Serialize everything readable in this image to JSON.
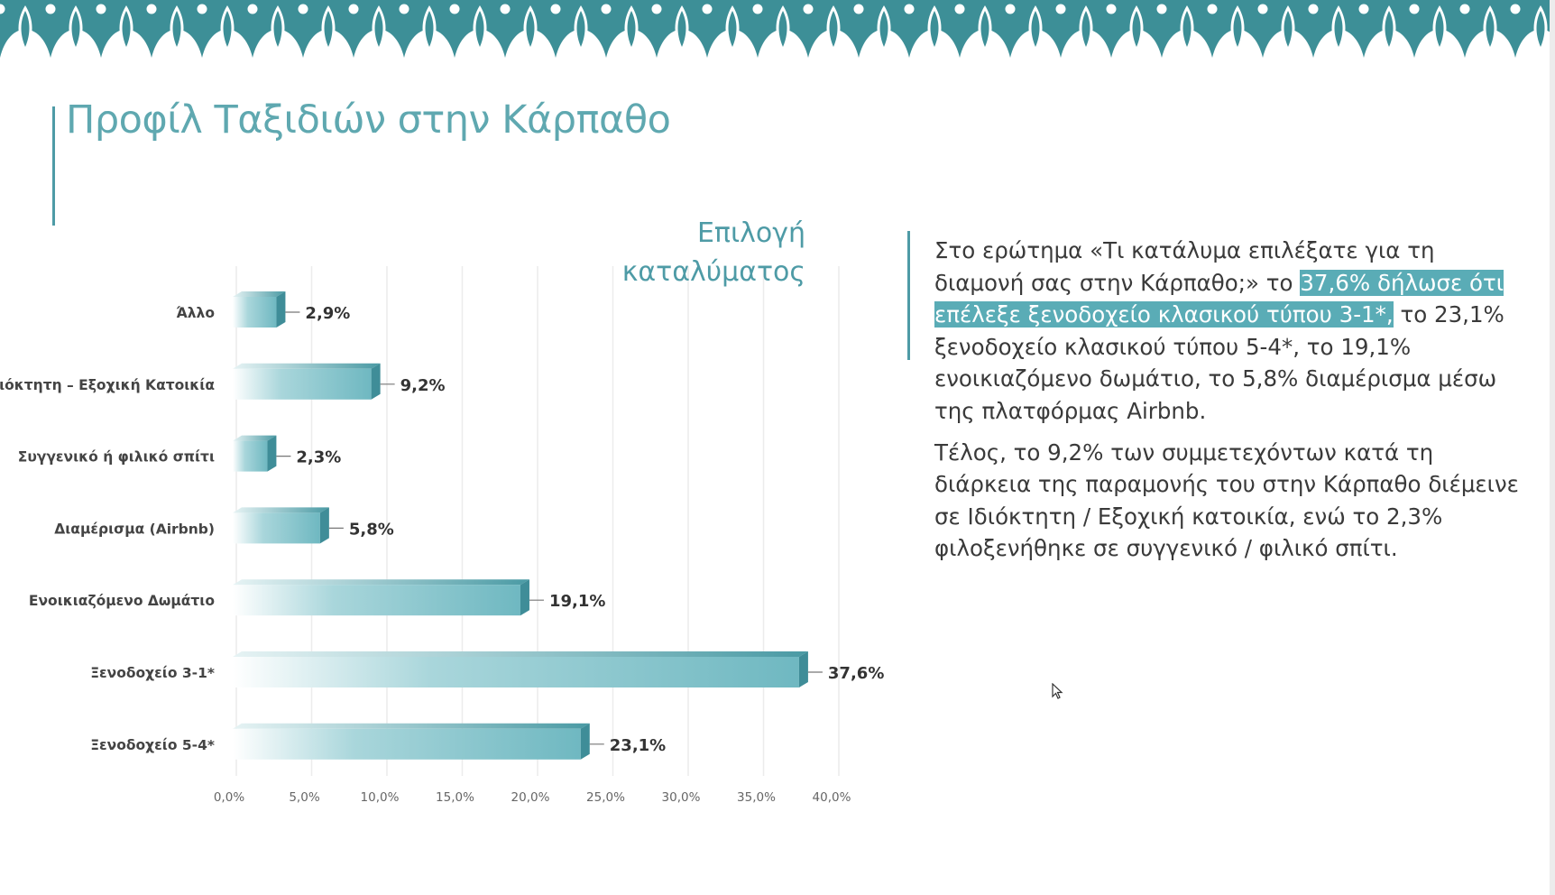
{
  "slide": {
    "title": "Προφίλ Ταξιδιών στην Κάρπαθο"
  },
  "colors": {
    "accent": "#4e9ba6",
    "title": "#5fa8b0",
    "bar": "#6fb8c1",
    "bar_dark": "#3f8d98",
    "highlight": "#5aacb6",
    "banner": "#3d8f97"
  },
  "chart_data": {
    "type": "bar",
    "orientation": "horizontal",
    "title": [
      "Επιλογή",
      "καταλύματος"
    ],
    "categories": [
      "Άλλο",
      "Ιδιόκτητη – Εξοχική Κατοικία",
      "Συγγενικό ή φιλικό σπίτι",
      "Διαμέρισμα (Airbnb)",
      "Ενοικιαζόμενο Δωμάτιο",
      "Ξενοδοχείο 3-1*",
      "Ξενοδοχείο 5-4*"
    ],
    "values": [
      2.9,
      9.2,
      2.3,
      5.8,
      19.1,
      37.6,
      23.1
    ],
    "value_labels": [
      "2,9%",
      "9,2%",
      "2,3%",
      "5,8%",
      "19,1%",
      "37,6%",
      "23,1%"
    ],
    "xlim": [
      0,
      40
    ],
    "x_ticks": [
      "0,0%",
      "5,0%",
      "10,0%",
      "15,0%",
      "20,0%",
      "25,0%",
      "30,0%",
      "35,0%",
      "40,0%"
    ],
    "grid": true
  },
  "text": {
    "p1_pre": "Στο ερώτημα «Τι κατάλυμα επιλέξατε για τη διαμονή σας στην Κάρπαθο;» το ",
    "p1_highlight": "37,6% δήλωσε ότι επέλεξε ξενοδοχείο κλασικού τύπου 3-1*,",
    "p1_post": " το 23,1% ξενοδοχείο κλασικού τύπου 5-4*, το 19,1% ενοικιαζόμενο δωμάτιο, το 5,8% διαμέρισμα μέσω της πλατφόρμας Airbnb.",
    "p2": "Τέλος, το 9,2% των συμμετεχόντων κατά τη διάρκεια της παραμονής του στην Κάρπαθο διέμεινε σε Ιδιόκτητη / Εξοχική κατοικία, ενώ το 2,3% φιλοξενήθηκε σε συγγενικό / φιλικό σπίτι."
  },
  "icons": {
    "cursor": "mouse-pointer-icon",
    "banner": "leaf-pattern-banner"
  }
}
